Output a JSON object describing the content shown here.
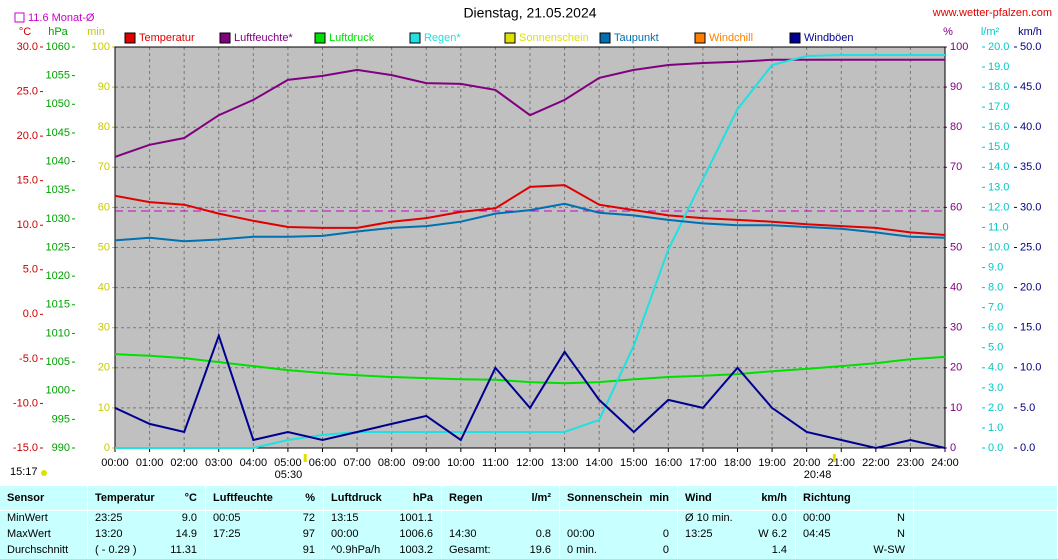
{
  "chart_data": {
    "type": "line",
    "title": "Dienstag, 21.05.2024",
    "source": "www.wetter-pfalzen.com",
    "updated": "15:17",
    "sunrise": "05:30",
    "sunset": "20:48",
    "mean": {
      "value": 11.6,
      "label": "11.6 Monat-Ø",
      "color": "#cc00cc",
      "axis": 0
    },
    "grid": true,
    "grid_axis": 3,
    "xlim": [
      0,
      24
    ],
    "xticks": [
      {
        "value": 0,
        "label": "00:00"
      },
      {
        "value": 1,
        "label": "01:00"
      },
      {
        "value": 2,
        "label": "02:00"
      },
      {
        "value": 3,
        "label": "03:00"
      },
      {
        "value": 4,
        "label": "04:00"
      },
      {
        "value": 5,
        "label": "05:00"
      },
      {
        "value": 6,
        "label": "06:00"
      },
      {
        "value": 7,
        "label": "07:00"
      },
      {
        "value": 8,
        "label": "08:00"
      },
      {
        "value": 9,
        "label": "09:00"
      },
      {
        "value": 10,
        "label": "10:00"
      },
      {
        "value": 11,
        "label": "11:00"
      },
      {
        "value": 12,
        "label": "12:00"
      },
      {
        "value": 13,
        "label": "13:00"
      },
      {
        "value": 14,
        "label": "14:00"
      },
      {
        "value": 15,
        "label": "15:00"
      },
      {
        "value": 16,
        "label": "16:00"
      },
      {
        "value": 17,
        "label": "17:00"
      },
      {
        "value": 18,
        "label": "18:00"
      },
      {
        "value": 19,
        "label": "19:00"
      },
      {
        "value": 20,
        "label": "20:00"
      },
      {
        "value": 21,
        "label": "21:00"
      },
      {
        "value": 22,
        "label": "22:00"
      },
      {
        "value": 23,
        "label": "23:00"
      },
      {
        "value": 24,
        "label": "24:00"
      }
    ],
    "x": [
      0,
      1,
      2,
      3,
      4,
      5,
      6,
      7,
      8,
      9,
      10,
      11,
      12,
      13,
      14,
      15,
      16,
      17,
      18,
      19,
      20,
      21,
      22,
      23,
      24
    ],
    "axes": [
      {
        "title": "°C",
        "color": "#cc0000",
        "lim": [
          -15,
          30
        ],
        "ticks": [
          {
            "value": 30,
            "label": "30.0"
          },
          {
            "value": 25,
            "label": "25.0"
          },
          {
            "value": 20,
            "label": "20.0"
          },
          {
            "value": 15,
            "label": "15.0"
          },
          {
            "value": 10,
            "label": "10.0"
          },
          {
            "value": 5,
            "label": "5.0"
          },
          {
            "value": 0,
            "label": "0.0"
          },
          {
            "value": -5,
            "label": "-5.0"
          },
          {
            "value": -10,
            "label": "-10.0"
          },
          {
            "value": -15,
            "label": "-15.0"
          }
        ]
      },
      {
        "title": "hPa",
        "color": "#00a000",
        "lim": [
          990,
          1060
        ],
        "ticks": [
          1060,
          1055,
          1050,
          1045,
          1040,
          1035,
          1030,
          1025,
          1020,
          1015,
          1010,
          1005,
          1000,
          995,
          990
        ]
      },
      {
        "title": "min",
        "color": "#c8c800",
        "lim": [
          0,
          100
        ],
        "ticks": [
          100,
          90,
          80,
          70,
          60,
          50,
          40,
          30,
          20,
          10,
          0
        ]
      },
      {
        "title": "%",
        "color": "#800080",
        "lim": [
          0,
          100
        ],
        "ticks": [
          100,
          90,
          80,
          70,
          60,
          50,
          40,
          30,
          20,
          10,
          0
        ]
      },
      {
        "title": "l/m²",
        "color": "#00c8c8",
        "lim": [
          0,
          20
        ],
        "ticks": [
          {
            "value": 20,
            "label": "20.0"
          },
          {
            "value": 19,
            "label": "19.0"
          },
          {
            "value": 18,
            "label": "18.0"
          },
          {
            "value": 17,
            "label": "17.0"
          },
          {
            "value": 16,
            "label": "16.0"
          },
          {
            "value": 15,
            "label": "15.0"
          },
          {
            "value": 14,
            "label": "14.0"
          },
          {
            "value": 13,
            "label": "13.0"
          },
          {
            "value": 12,
            "label": "12.0"
          },
          {
            "value": 11,
            "label": "11.0"
          },
          {
            "value": 10,
            "label": "10.0"
          },
          {
            "value": 9,
            "label": "9.0"
          },
          {
            "value": 8,
            "label": "8.0"
          },
          {
            "value": 7,
            "label": "7.0"
          },
          {
            "value": 6,
            "label": "6.0"
          },
          {
            "value": 5,
            "label": "5.0"
          },
          {
            "value": 4,
            "label": "4.0"
          },
          {
            "value": 3,
            "label": "3.0"
          },
          {
            "value": 2,
            "label": "2.0"
          },
          {
            "value": 1,
            "label": "1.0"
          },
          {
            "value": 0,
            "label": "0.0"
          }
        ]
      },
      {
        "title": "km/h",
        "color": "#000080",
        "lim": [
          0,
          50
        ],
        "ticks": [
          {
            "value": 50,
            "label": "50.0"
          },
          {
            "value": 45,
            "label": "45.0"
          },
          {
            "value": 40,
            "label": "40.0"
          },
          {
            "value": 35,
            "label": "35.0"
          },
          {
            "value": 30,
            "label": "30.0"
          },
          {
            "value": 25,
            "label": "25.0"
          },
          {
            "value": 20,
            "label": "20.0"
          },
          {
            "value": 15,
            "label": "15.0"
          },
          {
            "value": 10,
            "label": "10.0"
          },
          {
            "value": 5,
            "label": "5.0"
          },
          {
            "value": 0,
            "label": "0.0"
          }
        ]
      }
    ],
    "series": [
      {
        "name": "Temperatur",
        "color": "#e00000",
        "axis": 0,
        "values": [
          13.3,
          12.6,
          12.3,
          11.3,
          10.5,
          9.8,
          9.7,
          9.7,
          10.4,
          10.8,
          11.5,
          11.9,
          14.3,
          14.5,
          12.3,
          11.7,
          11.1,
          10.8,
          10.6,
          10.4,
          10.1,
          9.9,
          9.7,
          9.2,
          8.9
        ]
      },
      {
        "name": "Luftfeuchte*",
        "color": "#800080",
        "axis": 3,
        "values": [
          72.6,
          75.6,
          77.3,
          83,
          86.8,
          91.8,
          92.8,
          94.3,
          93,
          91,
          90.8,
          89.3,
          83,
          86.8,
          92.3,
          94.3,
          95.5,
          96,
          96.3,
          96.8,
          96.8,
          96.8,
          96.8,
          96.8,
          96.8
        ]
      },
      {
        "name": "Luftdruck",
        "color": "#00e000",
        "axis": 1,
        "values": [
          1006.4,
          1006.1,
          1005.7,
          1005.0,
          1004.3,
          1003.6,
          1003.1,
          1002.7,
          1002.4,
          1002.2,
          1002.0,
          1001.9,
          1001.5,
          1001.3,
          1001.5,
          1002.0,
          1002.4,
          1002.6,
          1002.9,
          1003.4,
          1003.8,
          1004.3,
          1004.8,
          1005.5,
          1005.9
        ]
      },
      {
        "name": "Regen*",
        "color": "#20e0e0",
        "axis": 4,
        "values": [
          0,
          0,
          0,
          0,
          0,
          0.4,
          0.65,
          0.8,
          0.8,
          0.8,
          0.8,
          0.8,
          0.8,
          0.8,
          1.4,
          5.1,
          9.9,
          13.4,
          16.9,
          19.1,
          19.55,
          19.6,
          19.6,
          19.6,
          19.6
        ]
      },
      {
        "name": "Sonnenschein",
        "color": "#e0e000"
      },
      {
        "name": "Taupunkt",
        "color": "#0070b0",
        "axis": 0,
        "values": [
          8.3,
          8.6,
          8.2,
          8.4,
          8.7,
          8.7,
          8.8,
          9.3,
          9.7,
          9.9,
          10.4,
          11.3,
          11.7,
          12.4,
          11.4,
          11.1,
          10.6,
          10.2,
          10.0,
          10.0,
          9.8,
          9.6,
          9.2,
          8.7,
          8.6
        ]
      },
      {
        "name": "Windchill",
        "color": "#ff8000"
      },
      {
        "name": "Windböen",
        "color": "#000090",
        "axis": 5,
        "values": [
          5,
          3,
          2,
          14,
          1,
          2,
          1,
          2,
          3,
          4,
          1,
          10,
          5,
          12,
          6,
          2,
          6,
          5,
          10,
          5,
          2,
          1,
          0,
          1,
          0
        ]
      }
    ]
  },
  "table": {
    "headers": [
      "Sensor",
      "Temperatur",
      "°C",
      "Luftfeuchte",
      "%",
      "Luftdruck",
      "hPa",
      "Regen",
      "l/m²",
      "Sonnenschein",
      "min",
      "Wind",
      "km/h",
      "Richtung",
      null
    ],
    "rows": [
      [
        "MinWert",
        "23:25",
        "9.0",
        "00:05",
        "72",
        "13:15",
        "1001.1",
        null,
        null,
        null,
        null,
        "Ø 10 min.",
        "0.0",
        "00:00",
        "N"
      ],
      [
        "MaxWert",
        "13:20",
        "14.9",
        "17:25",
        "97",
        "00:00",
        "1006.6",
        "14:30",
        "0.8",
        "00:00",
        "0",
        "13:25",
        "W 6.2",
        "04:45",
        "N"
      ],
      [
        "Durchschnitt",
        "( - 0.29 )",
        "11.31",
        null,
        "91",
        "^0.9hPa/h",
        "1003.2",
        "Gesamt:",
        "19.6",
        "0 min.",
        "0",
        null,
        "1.4",
        null,
        "W-SW"
      ]
    ]
  }
}
